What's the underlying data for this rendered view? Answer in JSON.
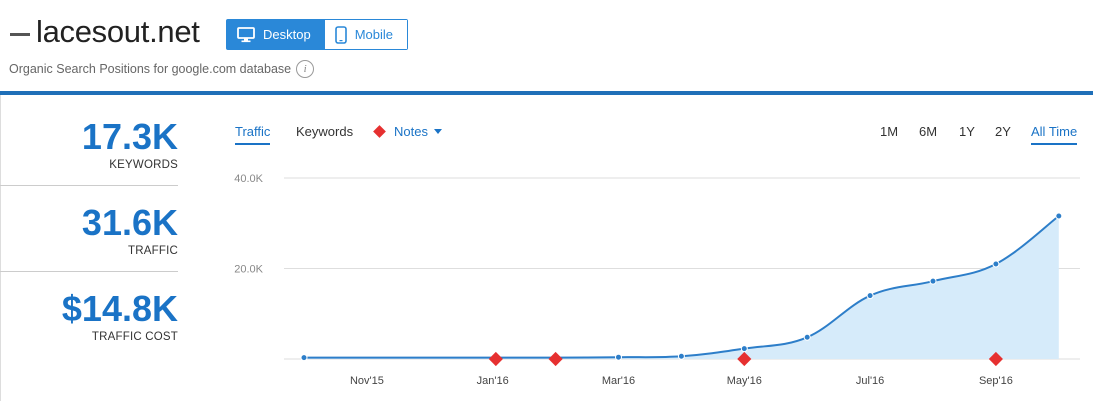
{
  "header": {
    "domain": "lacesout.net",
    "subtitle": "Organic Search Positions for google.com database",
    "device_tabs": [
      {
        "label": "Desktop",
        "active": true,
        "icon": "monitor-icon"
      },
      {
        "label": "Mobile",
        "active": false,
        "icon": "phone-icon"
      }
    ]
  },
  "metrics": [
    {
      "value": "17.3K",
      "label": "KEYWORDS"
    },
    {
      "value": "31.6K",
      "label": "TRAFFIC"
    },
    {
      "value": "$14.8K",
      "label": "TRAFFIC COST"
    }
  ],
  "chart_tabs": {
    "traffic": "Traffic",
    "keywords": "Keywords",
    "notes": "Notes"
  },
  "ranges": [
    {
      "label": "1M",
      "active": false
    },
    {
      "label": "6M",
      "active": false
    },
    {
      "label": "1Y",
      "active": false
    },
    {
      "label": "2Y",
      "active": false
    },
    {
      "label": "All Time",
      "active": true
    }
  ],
  "colors": {
    "accent": "#1a73c6",
    "note": "#e63030",
    "area": "#d6ebfa"
  },
  "chart_data": {
    "type": "area",
    "x": [
      "2015-10",
      "2015-11",
      "2015-12",
      "2016-01",
      "2016-02",
      "2016-03",
      "2016-04",
      "2016-05",
      "2016-06",
      "2016-07",
      "2016-08",
      "2016-09",
      "2016-10"
    ],
    "series": [
      {
        "values": [
          300,
          300,
          300,
          300,
          300,
          400,
          600,
          2300,
          4800,
          14000,
          17200,
          21000,
          31600
        ]
      }
    ],
    "ylim": [
      0,
      40000
    ],
    "y_ticks": [
      {
        "value": 20000,
        "label": "20.0K"
      },
      {
        "value": 40000,
        "label": "40.0K"
      }
    ],
    "x_ticks": [
      {
        "index": 1,
        "label": "Nov'15"
      },
      {
        "index": 3,
        "label": "Jan'16"
      },
      {
        "index": 5,
        "label": "Mar'16"
      },
      {
        "index": 7,
        "label": "May'16"
      },
      {
        "index": 9,
        "label": "Jul'16"
      },
      {
        "index": 11,
        "label": "Sep'16"
      }
    ],
    "notes_at": [
      3.05,
      4.0,
      7.0,
      11.0
    ],
    "grid": true
  }
}
